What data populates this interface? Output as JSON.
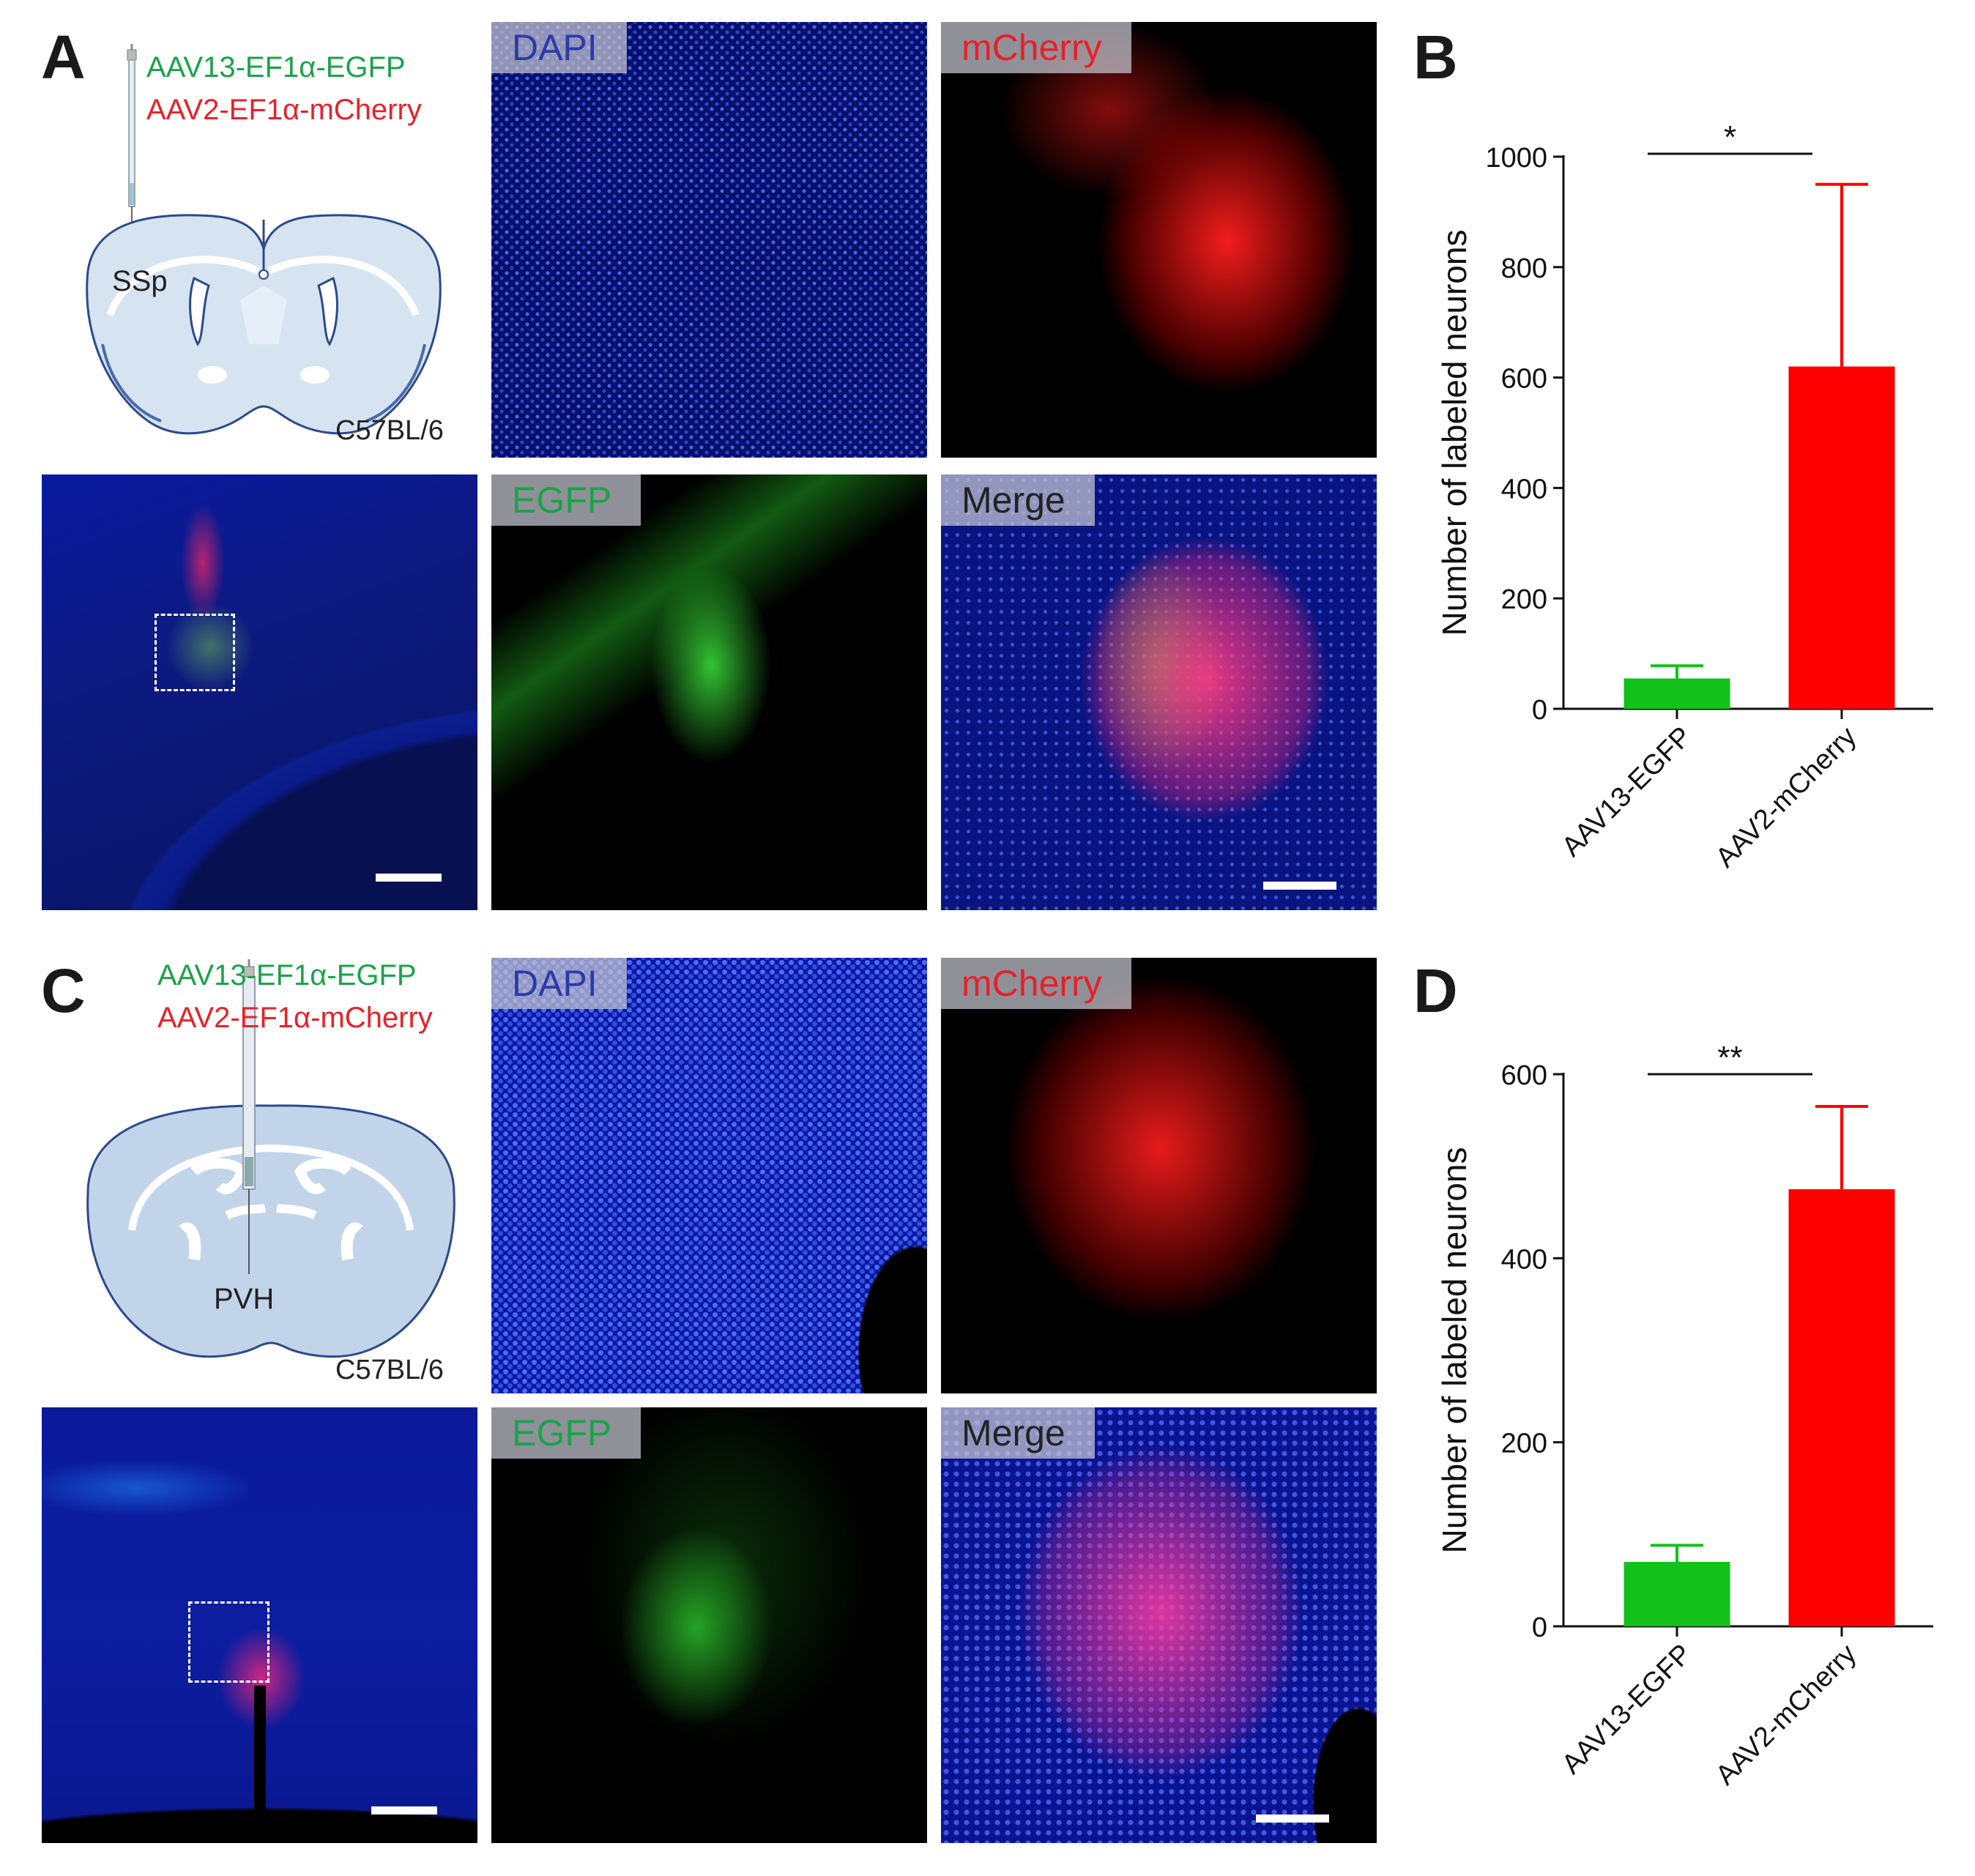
{
  "panels": {
    "a": {
      "letter": "A",
      "virus_green": "AAV13-EF1α-EGFP",
      "virus_red": "AAV2-EF1α-mCherry",
      "region": "SSp",
      "strain": "C57BL/6",
      "channels": [
        "DAPI",
        "mCherry",
        "EGFP",
        "Merge"
      ]
    },
    "b": {
      "letter": "B",
      "ylabel": "Number of labeled neurons",
      "significance": "*"
    },
    "c": {
      "letter": "C",
      "virus_green": "AAV13-EF1α-EGFP",
      "virus_red": "AAV2-EF1α-mCherry",
      "region": "PVH",
      "strain": "C57BL/6",
      "channels": [
        "DAPI",
        "mCherry",
        "EGFP",
        "Merge"
      ]
    },
    "d": {
      "letter": "D",
      "ylabel": "Number of labeled neurons",
      "significance": "**"
    }
  },
  "colors": {
    "green_text": "#1aa34a",
    "red_text": "#e8202a",
    "dapi_label": "#2b3aa8",
    "merge_label": "#222222",
    "bar_green": "#12c21a",
    "bar_red": "#ff0000",
    "dapi": "#1020c8"
  },
  "chart_data": [
    {
      "panel": "B",
      "type": "bar",
      "categories": [
        "AAV13-EGFP",
        "AAV2-mCherry"
      ],
      "values": [
        55,
        620
      ],
      "error_upper": [
        78,
        950
      ],
      "colors": [
        "#12c21a",
        "#ff0000"
      ],
      "ylabel": "Number of labeled neurons",
      "xlabel": "",
      "ylim": [
        0,
        1000
      ],
      "yticks": [
        0,
        200,
        400,
        600,
        800,
        1000
      ],
      "annotation": "*",
      "grid": false
    },
    {
      "panel": "D",
      "type": "bar",
      "categories": [
        "AAV13-EGFP",
        "AAV2-mCherry"
      ],
      "values": [
        70,
        475
      ],
      "error_upper": [
        88,
        565
      ],
      "colors": [
        "#12c21a",
        "#ff0000"
      ],
      "ylabel": "Number of labeled neurons",
      "xlabel": "",
      "ylim": [
        0,
        600
      ],
      "yticks": [
        0,
        200,
        400,
        600
      ],
      "annotation": "**",
      "grid": false
    }
  ]
}
